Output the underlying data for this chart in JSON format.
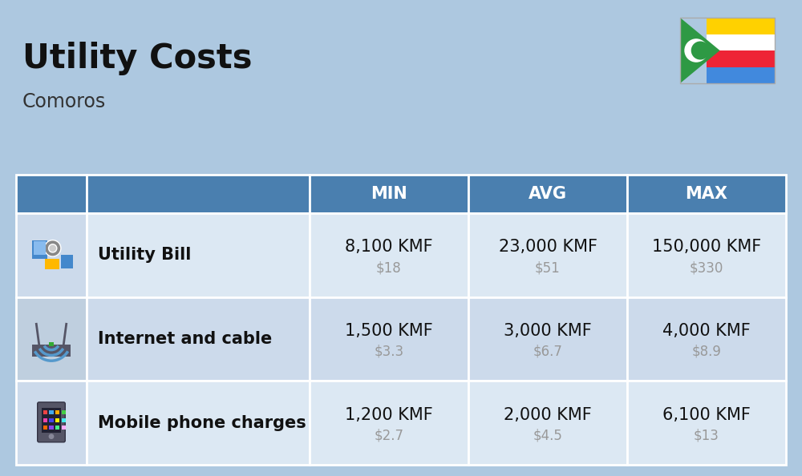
{
  "title": "Utility Costs",
  "subtitle": "Comoros",
  "background_color": "#adc8e0",
  "header_bg_color": "#4a7faf",
  "header_text_color": "#ffffff",
  "row_bg_color_odd": "#dce8f3",
  "row_bg_color_even": "#ccdaeb",
  "icon_col_bg_odd": "#ccdaeb",
  "icon_col_bg_even": "#bfcfdf",
  "col_headers": [
    "MIN",
    "AVG",
    "MAX"
  ],
  "rows": [
    {
      "label": "Utility Bill",
      "min_kmf": "8,100 KMF",
      "min_usd": "$18",
      "avg_kmf": "23,000 KMF",
      "avg_usd": "$51",
      "max_kmf": "150,000 KMF",
      "max_usd": "$330"
    },
    {
      "label": "Internet and cable",
      "min_kmf": "1,500 KMF",
      "min_usd": "$3.3",
      "avg_kmf": "3,000 KMF",
      "avg_usd": "$6.7",
      "max_kmf": "4,000 KMF",
      "max_usd": "$8.9"
    },
    {
      "label": "Mobile phone charges",
      "min_kmf": "1,200 KMF",
      "min_usd": "$2.7",
      "avg_kmf": "2,000 KMF",
      "avg_usd": "$4.5",
      "max_kmf": "6,100 KMF",
      "max_usd": "$13"
    }
  ],
  "title_fontsize": 30,
  "subtitle_fontsize": 17,
  "header_fontsize": 15,
  "label_fontsize": 15,
  "value_fontsize": 15,
  "usd_fontsize": 12,
  "usd_color": "#999999",
  "flag_stripes": [
    "#FFD100",
    "#FFFFFF",
    "#EE2436",
    "#4189DD"
  ],
  "flag_green": "#2E9944"
}
